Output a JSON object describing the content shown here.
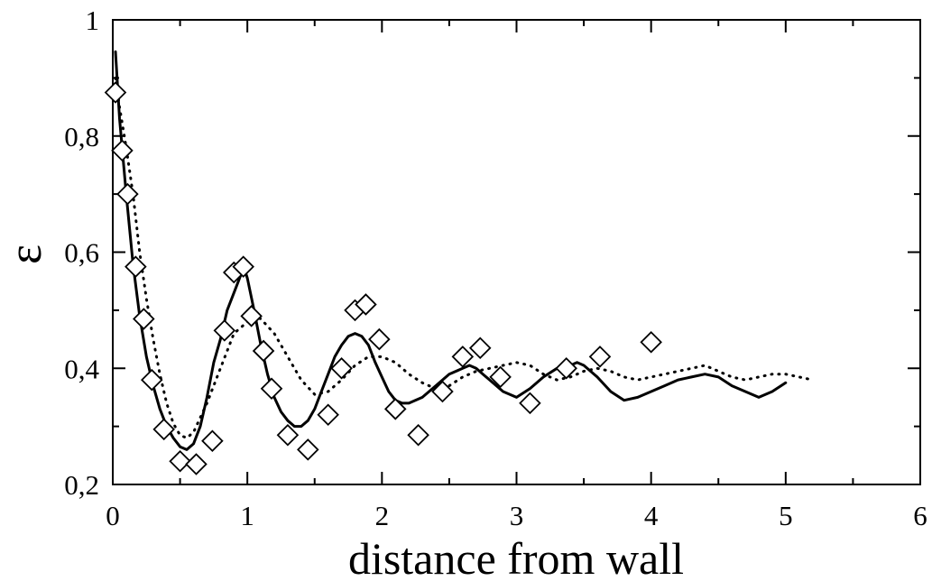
{
  "chart_data": {
    "type": "line",
    "title": "",
    "xlabel": "distance from wall",
    "ylabel": "ε",
    "xlim": [
      0,
      6
    ],
    "ylim": [
      0.2,
      1.0
    ],
    "x_ticks": [
      {
        "value": 0,
        "label": "0"
      },
      {
        "value": 1,
        "label": "1"
      },
      {
        "value": 2,
        "label": "2"
      },
      {
        "value": 3,
        "label": "3"
      },
      {
        "value": 4,
        "label": "4"
      },
      {
        "value": 5,
        "label": "5"
      },
      {
        "value": 6,
        "label": "6"
      }
    ],
    "y_ticks": [
      {
        "value": 0.2,
        "label": "0,2"
      },
      {
        "value": 0.4,
        "label": "0,4"
      },
      {
        "value": 0.6,
        "label": "0,6"
      },
      {
        "value": 0.8,
        "label": "0,8"
      },
      {
        "value": 1.0,
        "label": "1"
      }
    ],
    "grid": false,
    "legend": "none",
    "series": [
      {
        "style": "solid",
        "x": [
          0.02,
          0.05,
          0.1,
          0.15,
          0.2,
          0.25,
          0.3,
          0.35,
          0.4,
          0.45,
          0.5,
          0.55,
          0.6,
          0.65,
          0.7,
          0.75,
          0.8,
          0.85,
          0.9,
          0.95,
          0.98,
          1.0,
          1.05,
          1.1,
          1.15,
          1.2,
          1.25,
          1.3,
          1.35,
          1.4,
          1.45,
          1.5,
          1.55,
          1.6,
          1.65,
          1.7,
          1.75,
          1.8,
          1.85,
          1.9,
          1.95,
          2.0,
          2.05,
          2.1,
          2.15,
          2.2,
          2.3,
          2.4,
          2.5,
          2.6,
          2.65,
          2.7,
          2.75,
          2.8,
          2.9,
          3.0,
          3.1,
          3.2,
          3.3,
          3.4,
          3.45,
          3.5,
          3.6,
          3.7,
          3.8,
          3.9,
          4.0,
          4.1,
          4.2,
          4.3,
          4.4,
          4.5,
          4.6,
          4.7,
          4.8,
          4.9,
          5.0
        ],
        "y": [
          0.945,
          0.83,
          0.7,
          0.58,
          0.49,
          0.42,
          0.37,
          0.33,
          0.3,
          0.28,
          0.265,
          0.26,
          0.27,
          0.3,
          0.35,
          0.41,
          0.45,
          0.5,
          0.53,
          0.56,
          0.57,
          0.555,
          0.5,
          0.44,
          0.39,
          0.35,
          0.325,
          0.31,
          0.3,
          0.3,
          0.31,
          0.33,
          0.36,
          0.39,
          0.42,
          0.44,
          0.455,
          0.46,
          0.455,
          0.44,
          0.41,
          0.385,
          0.36,
          0.345,
          0.34,
          0.34,
          0.35,
          0.37,
          0.39,
          0.4,
          0.405,
          0.4,
          0.39,
          0.38,
          0.36,
          0.35,
          0.365,
          0.385,
          0.4,
          0.405,
          0.41,
          0.405,
          0.385,
          0.36,
          0.345,
          0.35,
          0.36,
          0.37,
          0.38,
          0.385,
          0.39,
          0.385,
          0.37,
          0.36,
          0.35,
          0.36,
          0.375
        ]
      },
      {
        "style": "dotted",
        "x": [
          0.02,
          0.05,
          0.1,
          0.15,
          0.2,
          0.25,
          0.3,
          0.35,
          0.4,
          0.45,
          0.5,
          0.55,
          0.6,
          0.7,
          0.8,
          0.9,
          1.0,
          1.05,
          1.1,
          1.2,
          1.3,
          1.4,
          1.5,
          1.6,
          1.7,
          1.8,
          1.9,
          2.0,
          2.1,
          2.2,
          2.3,
          2.4,
          2.5,
          2.6,
          2.7,
          2.8,
          2.9,
          3.0,
          3.1,
          3.2,
          3.3,
          3.4,
          3.5,
          3.6,
          3.7,
          3.8,
          3.9,
          4.0,
          4.1,
          4.2,
          4.3,
          4.4,
          4.5,
          4.6,
          4.7,
          4.8,
          4.9,
          5.0,
          5.1,
          5.2
        ],
        "y": [
          0.9,
          0.85,
          0.78,
          0.7,
          0.6,
          0.52,
          0.45,
          0.39,
          0.34,
          0.305,
          0.285,
          0.28,
          0.29,
          0.34,
          0.4,
          0.46,
          0.48,
          0.49,
          0.485,
          0.46,
          0.42,
          0.38,
          0.355,
          0.36,
          0.38,
          0.405,
          0.42,
          0.42,
          0.41,
          0.39,
          0.375,
          0.365,
          0.37,
          0.385,
          0.395,
          0.4,
          0.405,
          0.41,
          0.405,
          0.39,
          0.38,
          0.385,
          0.395,
          0.4,
          0.395,
          0.385,
          0.38,
          0.385,
          0.39,
          0.395,
          0.4,
          0.405,
          0.395,
          0.385,
          0.38,
          0.385,
          0.39,
          0.39,
          0.385,
          0.38
        ]
      },
      {
        "style": "markers",
        "marker": "diamond",
        "x": [
          0.02,
          0.07,
          0.11,
          0.17,
          0.23,
          0.29,
          0.38,
          0.5,
          0.62,
          0.74,
          0.83,
          0.9,
          0.97,
          1.03,
          1.12,
          1.18,
          1.3,
          1.45,
          1.6,
          1.7,
          1.8,
          1.88,
          1.98,
          2.1,
          2.27,
          2.45,
          2.6,
          2.73,
          2.88,
          3.1,
          3.37,
          3.62,
          4.0
        ],
        "y": [
          0.875,
          0.775,
          0.7,
          0.575,
          0.485,
          0.38,
          0.295,
          0.24,
          0.235,
          0.275,
          0.465,
          0.565,
          0.575,
          0.49,
          0.43,
          0.365,
          0.285,
          0.26,
          0.32,
          0.4,
          0.5,
          0.51,
          0.45,
          0.33,
          0.285,
          0.36,
          0.42,
          0.435,
          0.385,
          0.34,
          0.4,
          0.42,
          0.445
        ]
      }
    ]
  }
}
